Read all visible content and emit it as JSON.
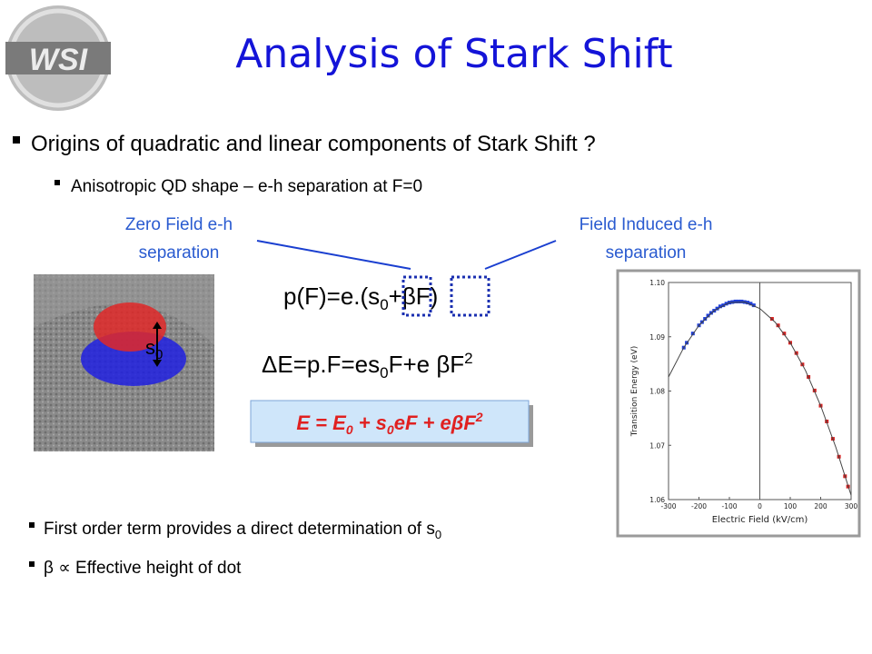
{
  "logo": "WSI",
  "title": "Analysis of Stark Shift",
  "bullet": "Origins of quadratic and linear components of Stark Shift ?",
  "sub_bullet": "Anisotropic QD shape – e-h separation at F=0",
  "labels": {
    "zero_field": [
      "Zero Field e-h",
      "separation"
    ],
    "field_induced": [
      "Field Induced e-h",
      "separation"
    ]
  },
  "image_label": [
    "s",
    "0"
  ],
  "formula_dipole": [
    "p(F)=e.(s",
    "0",
    "+βF)"
  ],
  "formula_delta": [
    "ΔE=p.F=es",
    "0",
    "F+e βF",
    "2"
  ],
  "formula_box": [
    "E = E",
    "0",
    " + s",
    "0",
    "eF + eβF",
    "2"
  ],
  "bottom_bullets": [
    [
      "First order term provides a direct determination of s",
      "0"
    ],
    [
      "β ∝ Effective height of dot"
    ]
  ],
  "chart_data": {
    "type": "scatter",
    "xlabel": "Electric Field (kV/cm)",
    "ylabel": "Transition Energy (eV)",
    "xlim": [
      -300,
      300
    ],
    "ylim": [
      1.06,
      1.1
    ],
    "xticks": [
      -300,
      -200,
      -100,
      0,
      100,
      200,
      300
    ],
    "yticks": [
      1.06,
      1.07,
      1.08,
      1.09,
      {
        "value": 1.1,
        "label": "1.10"
      }
    ],
    "series": [
      {
        "color": "#1f3fd8",
        "x": [
          -250,
          -240,
          -220,
          -200,
          -190,
          -180,
          -170,
          -160,
          -150,
          -140,
          -130,
          -120,
          -110,
          -100,
          -90,
          -80,
          -70,
          -60,
          -50,
          -40,
          -30,
          -20
        ],
        "values": [
          1.088,
          1.0889,
          1.0906,
          1.0921,
          1.0927,
          1.0933,
          1.0939,
          1.0944,
          1.0948,
          1.0952,
          1.0956,
          1.0958,
          1.0961,
          1.0963,
          1.0964,
          1.0965,
          1.0965,
          1.0965,
          1.0964,
          1.0963,
          1.0961,
          1.0958
        ]
      },
      {
        "color": "#d42020",
        "x": [
          40,
          60,
          80,
          100,
          120,
          140,
          160,
          180,
          200,
          220,
          240,
          260,
          280,
          290
        ],
        "values": [
          1.0933,
          1.0921,
          1.0906,
          1.0889,
          1.087,
          1.0849,
          1.0826,
          1.0801,
          1.0773,
          1.0744,
          1.0712,
          1.0679,
          1.0643,
          1.0624
        ]
      },
      {
        "color": "#444444",
        "line": true,
        "x": [
          -300,
          -250,
          -200,
          -150,
          -100,
          -50,
          0,
          50,
          100,
          150,
          200,
          250,
          300
        ],
        "values": [
          1.0826,
          1.088,
          1.0921,
          1.0948,
          1.0963,
          1.0964,
          1.0952,
          1.0927,
          1.0889,
          1.0838,
          1.0773,
          1.0696,
          1.0608
        ]
      }
    ]
  }
}
